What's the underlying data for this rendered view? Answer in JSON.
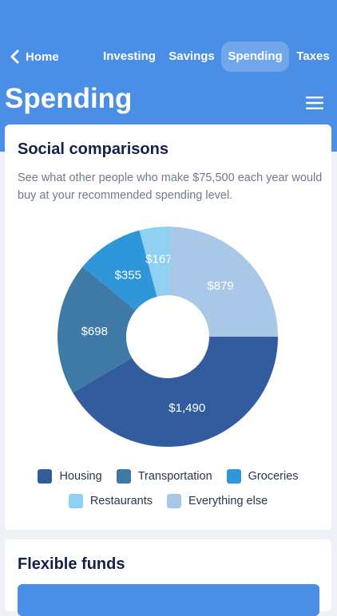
{
  "nav": {
    "back_label": "Home",
    "tabs": [
      {
        "label": "Investing"
      },
      {
        "label": "Savings"
      },
      {
        "label": "Spending",
        "active": true
      },
      {
        "label": "Taxes"
      }
    ]
  },
  "page": {
    "title": "Spending"
  },
  "social": {
    "title": "Social comparisons",
    "description": "See what other people who make $75,500 each year would buy at your recommended spending level."
  },
  "chart_data": {
    "type": "pie",
    "categories": [
      "Housing",
      "Transportation",
      "Groceries",
      "Restaurants",
      "Everything else"
    ],
    "values": [
      1490,
      698,
      355,
      167,
      879
    ],
    "labels": [
      "$1,490",
      "$698",
      "$355",
      "$167",
      "$879"
    ],
    "colors": [
      "#335c9e",
      "#3f7aa6",
      "#2f97d9",
      "#8fd0f3",
      "#a9c8e8"
    ],
    "legend": "bottom"
  },
  "flexible": {
    "title": "Flexible funds"
  }
}
